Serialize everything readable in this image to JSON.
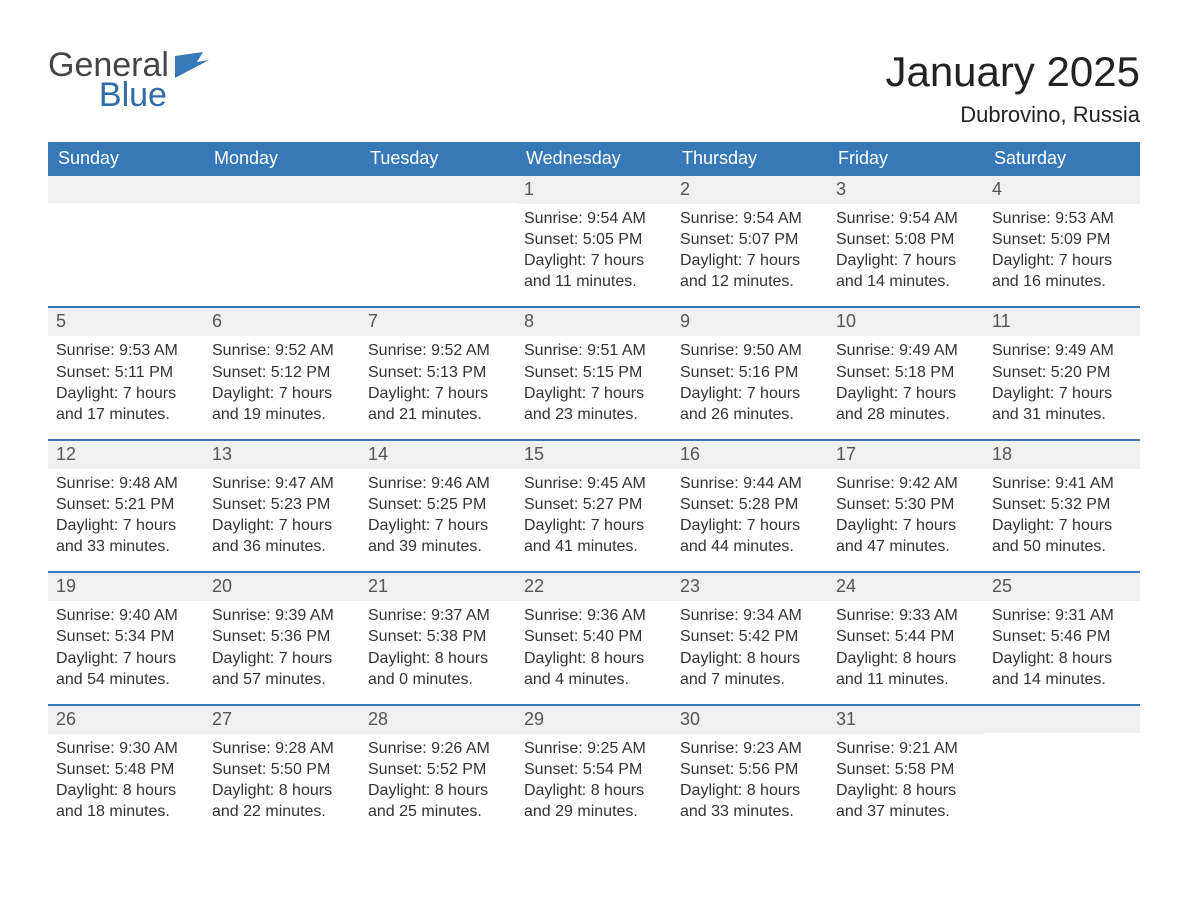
{
  "logo": {
    "general": "General",
    "blue": "Blue"
  },
  "title": "January 2025",
  "location": "Dubrovino, Russia",
  "weekdays": [
    "Sunday",
    "Monday",
    "Tuesday",
    "Wednesday",
    "Thursday",
    "Friday",
    "Saturday"
  ],
  "colors": {
    "header_bg": "#3778b8",
    "divider": "#3778b8",
    "daynum_bg": "#f0f0f0",
    "text": "#333333"
  },
  "weeks": [
    [
      {
        "blank": true
      },
      {
        "blank": true
      },
      {
        "blank": true
      },
      {
        "n": "1",
        "sunrise": "Sunrise: 9:54 AM",
        "sunset": "Sunset: 5:05 PM",
        "d1": "Daylight: 7 hours",
        "d2": "and 11 minutes."
      },
      {
        "n": "2",
        "sunrise": "Sunrise: 9:54 AM",
        "sunset": "Sunset: 5:07 PM",
        "d1": "Daylight: 7 hours",
        "d2": "and 12 minutes."
      },
      {
        "n": "3",
        "sunrise": "Sunrise: 9:54 AM",
        "sunset": "Sunset: 5:08 PM",
        "d1": "Daylight: 7 hours",
        "d2": "and 14 minutes."
      },
      {
        "n": "4",
        "sunrise": "Sunrise: 9:53 AM",
        "sunset": "Sunset: 5:09 PM",
        "d1": "Daylight: 7 hours",
        "d2": "and 16 minutes."
      }
    ],
    [
      {
        "n": "5",
        "sunrise": "Sunrise: 9:53 AM",
        "sunset": "Sunset: 5:11 PM",
        "d1": "Daylight: 7 hours",
        "d2": "and 17 minutes."
      },
      {
        "n": "6",
        "sunrise": "Sunrise: 9:52 AM",
        "sunset": "Sunset: 5:12 PM",
        "d1": "Daylight: 7 hours",
        "d2": "and 19 minutes."
      },
      {
        "n": "7",
        "sunrise": "Sunrise: 9:52 AM",
        "sunset": "Sunset: 5:13 PM",
        "d1": "Daylight: 7 hours",
        "d2": "and 21 minutes."
      },
      {
        "n": "8",
        "sunrise": "Sunrise: 9:51 AM",
        "sunset": "Sunset: 5:15 PM",
        "d1": "Daylight: 7 hours",
        "d2": "and 23 minutes."
      },
      {
        "n": "9",
        "sunrise": "Sunrise: 9:50 AM",
        "sunset": "Sunset: 5:16 PM",
        "d1": "Daylight: 7 hours",
        "d2": "and 26 minutes."
      },
      {
        "n": "10",
        "sunrise": "Sunrise: 9:49 AM",
        "sunset": "Sunset: 5:18 PM",
        "d1": "Daylight: 7 hours",
        "d2": "and 28 minutes."
      },
      {
        "n": "11",
        "sunrise": "Sunrise: 9:49 AM",
        "sunset": "Sunset: 5:20 PM",
        "d1": "Daylight: 7 hours",
        "d2": "and 31 minutes."
      }
    ],
    [
      {
        "n": "12",
        "sunrise": "Sunrise: 9:48 AM",
        "sunset": "Sunset: 5:21 PM",
        "d1": "Daylight: 7 hours",
        "d2": "and 33 minutes."
      },
      {
        "n": "13",
        "sunrise": "Sunrise: 9:47 AM",
        "sunset": "Sunset: 5:23 PM",
        "d1": "Daylight: 7 hours",
        "d2": "and 36 minutes."
      },
      {
        "n": "14",
        "sunrise": "Sunrise: 9:46 AM",
        "sunset": "Sunset: 5:25 PM",
        "d1": "Daylight: 7 hours",
        "d2": "and 39 minutes."
      },
      {
        "n": "15",
        "sunrise": "Sunrise: 9:45 AM",
        "sunset": "Sunset: 5:27 PM",
        "d1": "Daylight: 7 hours",
        "d2": "and 41 minutes."
      },
      {
        "n": "16",
        "sunrise": "Sunrise: 9:44 AM",
        "sunset": "Sunset: 5:28 PM",
        "d1": "Daylight: 7 hours",
        "d2": "and 44 minutes."
      },
      {
        "n": "17",
        "sunrise": "Sunrise: 9:42 AM",
        "sunset": "Sunset: 5:30 PM",
        "d1": "Daylight: 7 hours",
        "d2": "and 47 minutes."
      },
      {
        "n": "18",
        "sunrise": "Sunrise: 9:41 AM",
        "sunset": "Sunset: 5:32 PM",
        "d1": "Daylight: 7 hours",
        "d2": "and 50 minutes."
      }
    ],
    [
      {
        "n": "19",
        "sunrise": "Sunrise: 9:40 AM",
        "sunset": "Sunset: 5:34 PM",
        "d1": "Daylight: 7 hours",
        "d2": "and 54 minutes."
      },
      {
        "n": "20",
        "sunrise": "Sunrise: 9:39 AM",
        "sunset": "Sunset: 5:36 PM",
        "d1": "Daylight: 7 hours",
        "d2": "and 57 minutes."
      },
      {
        "n": "21",
        "sunrise": "Sunrise: 9:37 AM",
        "sunset": "Sunset: 5:38 PM",
        "d1": "Daylight: 8 hours",
        "d2": "and 0 minutes."
      },
      {
        "n": "22",
        "sunrise": "Sunrise: 9:36 AM",
        "sunset": "Sunset: 5:40 PM",
        "d1": "Daylight: 8 hours",
        "d2": "and 4 minutes."
      },
      {
        "n": "23",
        "sunrise": "Sunrise: 9:34 AM",
        "sunset": "Sunset: 5:42 PM",
        "d1": "Daylight: 8 hours",
        "d2": "and 7 minutes."
      },
      {
        "n": "24",
        "sunrise": "Sunrise: 9:33 AM",
        "sunset": "Sunset: 5:44 PM",
        "d1": "Daylight: 8 hours",
        "d2": "and 11 minutes."
      },
      {
        "n": "25",
        "sunrise": "Sunrise: 9:31 AM",
        "sunset": "Sunset: 5:46 PM",
        "d1": "Daylight: 8 hours",
        "d2": "and 14 minutes."
      }
    ],
    [
      {
        "n": "26",
        "sunrise": "Sunrise: 9:30 AM",
        "sunset": "Sunset: 5:48 PM",
        "d1": "Daylight: 8 hours",
        "d2": "and 18 minutes."
      },
      {
        "n": "27",
        "sunrise": "Sunrise: 9:28 AM",
        "sunset": "Sunset: 5:50 PM",
        "d1": "Daylight: 8 hours",
        "d2": "and 22 minutes."
      },
      {
        "n": "28",
        "sunrise": "Sunrise: 9:26 AM",
        "sunset": "Sunset: 5:52 PM",
        "d1": "Daylight: 8 hours",
        "d2": "and 25 minutes."
      },
      {
        "n": "29",
        "sunrise": "Sunrise: 9:25 AM",
        "sunset": "Sunset: 5:54 PM",
        "d1": "Daylight: 8 hours",
        "d2": "and 29 minutes."
      },
      {
        "n": "30",
        "sunrise": "Sunrise: 9:23 AM",
        "sunset": "Sunset: 5:56 PM",
        "d1": "Daylight: 8 hours",
        "d2": "and 33 minutes."
      },
      {
        "n": "31",
        "sunrise": "Sunrise: 9:21 AM",
        "sunset": "Sunset: 5:58 PM",
        "d1": "Daylight: 8 hours",
        "d2": "and 37 minutes."
      },
      {
        "blank": true
      }
    ]
  ]
}
